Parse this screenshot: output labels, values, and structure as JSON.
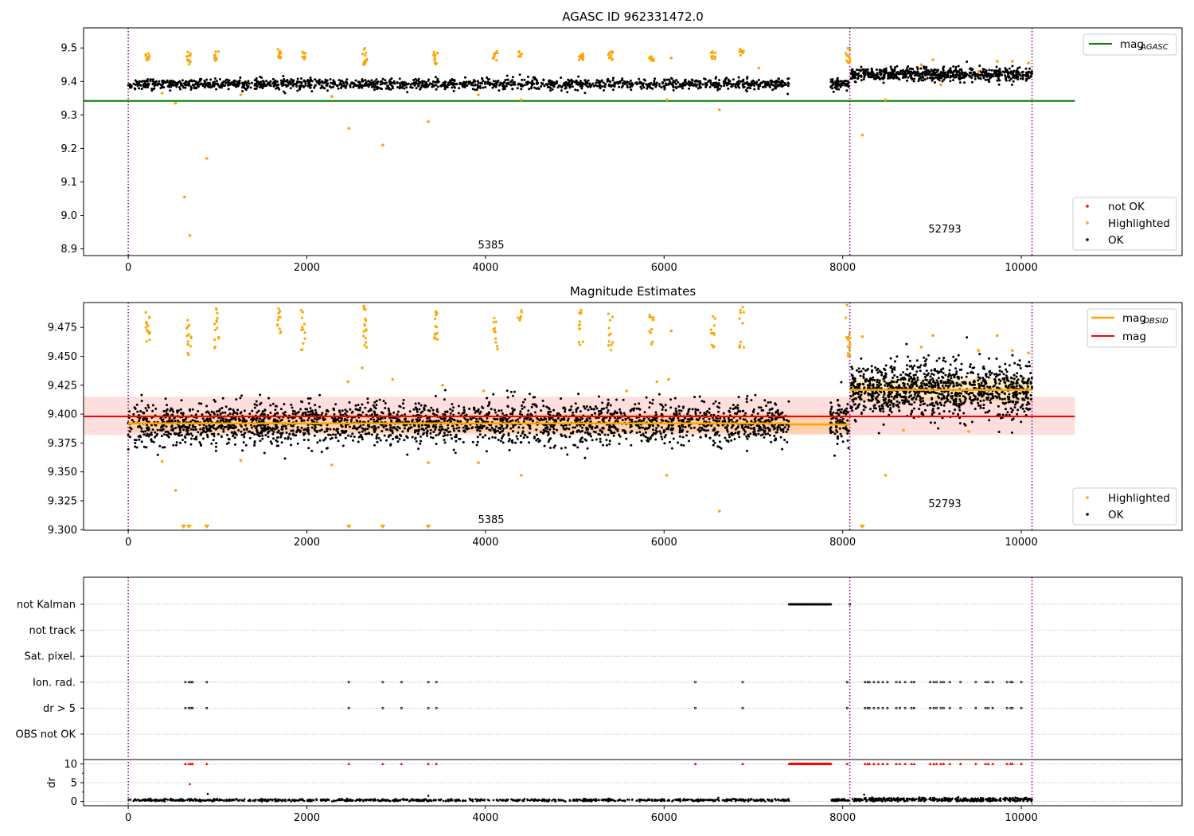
{
  "figure": {
    "width": 1500,
    "height": 1050
  },
  "colors": {
    "ok": "#000000",
    "highlighted": "#ffa500",
    "not_ok": "#ff0000",
    "mag_agasc": "#008000",
    "mag_obsid": "#ffa500",
    "mag": "#ff0000",
    "band_mag": "#ffb6b6",
    "vline": "#800080",
    "grid": "#b0b0b0"
  },
  "chart_data": [
    {
      "id": "top",
      "type": "scatter",
      "title": "AGASC ID 962331472.0",
      "xlim": [
        -500,
        11800
      ],
      "ylim": [
        8.88,
        9.56
      ],
      "x_ticks": [
        0,
        2000,
        4000,
        6000,
        8000,
        10000
      ],
      "y_ticks": [
        8.9,
        9.0,
        9.1,
        9.2,
        9.3,
        9.4,
        9.5
      ],
      "y_tick_labels": [
        "8.9",
        "9.0",
        "9.1",
        "9.2",
        "9.3",
        "9.4",
        "9.5"
      ],
      "vlines": [
        0,
        8080,
        10120
      ],
      "hlines": [
        {
          "name": "mag_AGASC",
          "y": 9.342,
          "x": [
            -500,
            10600
          ],
          "color": "#008000"
        }
      ],
      "obsid_labels": [
        {
          "text": "5385",
          "x": 4040,
          "y": 8.895
        },
        {
          "text": "52793",
          "x": 9000,
          "y": 8.945
        }
      ],
      "legend_top": {
        "position": "upper right",
        "items": [
          {
            "label": "mag",
            "sub": "AGASC",
            "type": "line",
            "color": "#008000"
          }
        ]
      },
      "legend_bottom": {
        "position": "lower right",
        "items": [
          {
            "label": "not OK",
            "type": "dot",
            "color": "#ff0000"
          },
          {
            "label": "Highlighted",
            "type": "dot",
            "color": "#ffa500"
          },
          {
            "label": "OK",
            "type": "dot",
            "color": "#000000"
          }
        ]
      },
      "ok_segments": [
        {
          "x0": 0,
          "x1": 7400,
          "mean": 9.392,
          "sd": 0.008,
          "n": 1500
        },
        {
          "x0": 7860,
          "x1": 8070,
          "mean": 9.392,
          "sd": 0.009,
          "n": 60
        },
        {
          "x0": 8090,
          "x1": 10120,
          "mean": 9.421,
          "sd": 0.01,
          "n": 650
        }
      ],
      "highlight_clusters": [
        {
          "x": 220,
          "y": [
            9.46,
            9.49
          ],
          "n": 12
        },
        {
          "x": 680,
          "y": [
            9.45,
            9.49
          ],
          "n": 12
        },
        {
          "x": 990,
          "y": [
            9.46,
            9.49
          ],
          "n": 12
        },
        {
          "x": 1690,
          "y": [
            9.47,
            9.5
          ],
          "n": 10
        },
        {
          "x": 1960,
          "y": [
            9.46,
            9.49
          ],
          "n": 10
        },
        {
          "x": 2650,
          "y": [
            9.45,
            9.5
          ],
          "n": 14
        },
        {
          "x": 3440,
          "y": [
            9.45,
            9.49
          ],
          "n": 12
        },
        {
          "x": 4110,
          "y": [
            9.46,
            9.49
          ],
          "n": 10
        },
        {
          "x": 4390,
          "y": [
            9.47,
            9.49
          ],
          "n": 6
        },
        {
          "x": 5070,
          "y": [
            9.46,
            9.49
          ],
          "n": 10
        },
        {
          "x": 5400,
          "y": [
            9.46,
            9.49
          ],
          "n": 10
        },
        {
          "x": 5860,
          "y": [
            9.46,
            9.49
          ],
          "n": 10
        },
        {
          "x": 6550,
          "y": [
            9.46,
            9.49
          ],
          "n": 10
        },
        {
          "x": 6870,
          "y": [
            9.47,
            9.5
          ],
          "n": 8
        },
        {
          "x": 8060,
          "y": [
            9.45,
            9.5
          ],
          "n": 14
        }
      ],
      "highlight_points": [
        [
          530,
          9.335
        ],
        [
          630,
          9.055
        ],
        [
          690,
          8.94
        ],
        [
          880,
          9.17
        ],
        [
          2470,
          9.26
        ],
        [
          2850,
          9.21
        ],
        [
          3360,
          9.28
        ],
        [
          6620,
          9.315
        ],
        [
          6080,
          9.47
        ],
        [
          8220,
          9.24
        ],
        [
          8480,
          9.345
        ],
        [
          8880,
          9.45
        ],
        [
          9010,
          9.465
        ],
        [
          9520,
          9.43
        ],
        [
          9730,
          9.46
        ],
        [
          9900,
          9.46
        ],
        [
          10080,
          9.455
        ],
        [
          1260,
          9.36
        ],
        [
          380,
          9.365
        ],
        [
          2280,
          9.355
        ],
        [
          3920,
          9.36
        ],
        [
          4400,
          9.345
        ],
        [
          6030,
          9.345
        ],
        [
          7060,
          9.44
        ],
        [
          9100,
          9.39
        ]
      ]
    },
    {
      "id": "middle",
      "type": "scatter",
      "title": "Magnitude Estimates",
      "xlim": [
        -500,
        11800
      ],
      "ylim": [
        9.2995,
        9.4965
      ],
      "x_ticks": [
        0,
        2000,
        4000,
        6000,
        8000,
        10000
      ],
      "y_ticks": [
        9.3,
        9.325,
        9.35,
        9.375,
        9.4,
        9.425,
        9.45,
        9.475
      ],
      "y_tick_labels": [
        "9.300",
        "9.325",
        "9.350",
        "9.375",
        "9.400",
        "9.425",
        "9.450",
        "9.475"
      ],
      "vlines": [
        0,
        8080,
        10120
      ],
      "mag_line": {
        "y": 9.398,
        "band": [
          9.382,
          9.415
        ],
        "x": [
          -500,
          10600
        ],
        "color": "#ff0000"
      },
      "obsid_lines": [
        {
          "x": [
            0,
            7400
          ],
          "y": 9.392,
          "band": [
            9.384,
            9.4
          ]
        },
        {
          "x": [
            7400,
            8080
          ],
          "y": 9.391,
          "band": [
            9.383,
            9.399
          ]
        },
        {
          "x": [
            8080,
            10120
          ],
          "y": 9.421,
          "band": [
            9.411,
            9.431
          ]
        }
      ],
      "obsid_labels": [
        {
          "text": "5385",
          "x": 4040,
          "y": 9.306
        },
        {
          "text": "52793",
          "x": 9000,
          "y": 9.319
        }
      ],
      "legend_top": {
        "position": "upper right",
        "items": [
          {
            "label": "mag",
            "sub": "OBSID",
            "type": "line",
            "color": "#ffa500"
          },
          {
            "label": "mag",
            "sub": "",
            "type": "line",
            "color": "#ff0000"
          }
        ]
      },
      "legend_bottom": {
        "position": "lower right",
        "items": [
          {
            "label": "Highlighted",
            "type": "dot",
            "color": "#ffa500"
          },
          {
            "label": "OK",
            "type": "dot",
            "color": "#000000"
          }
        ]
      },
      "ok_segments": [
        {
          "x0": 0,
          "x1": 7400,
          "mean": 9.392,
          "sd": 0.009,
          "n": 2600
        },
        {
          "x0": 7860,
          "x1": 8070,
          "mean": 9.392,
          "sd": 0.01,
          "n": 90
        },
        {
          "x0": 8090,
          "x1": 10120,
          "mean": 9.421,
          "sd": 0.012,
          "n": 1100
        }
      ],
      "highlight_clusters": [
        {
          "x": 220,
          "y": [
            9.455,
            9.492
          ],
          "n": 14
        },
        {
          "x": 680,
          "y": [
            9.447,
            9.49
          ],
          "n": 14
        },
        {
          "x": 990,
          "y": [
            9.457,
            9.492
          ],
          "n": 14
        },
        {
          "x": 1690,
          "y": [
            9.467,
            9.495
          ],
          "n": 12
        },
        {
          "x": 1960,
          "y": [
            9.455,
            9.49
          ],
          "n": 12
        },
        {
          "x": 2650,
          "y": [
            9.455,
            9.495
          ],
          "n": 16
        },
        {
          "x": 3440,
          "y": [
            9.455,
            9.49
          ],
          "n": 14
        },
        {
          "x": 4110,
          "y": [
            9.456,
            9.487
          ],
          "n": 12
        },
        {
          "x": 4390,
          "y": [
            9.47,
            9.49
          ],
          "n": 6
        },
        {
          "x": 5070,
          "y": [
            9.458,
            9.492
          ],
          "n": 12
        },
        {
          "x": 5400,
          "y": [
            9.455,
            9.49
          ],
          "n": 12
        },
        {
          "x": 5860,
          "y": [
            9.46,
            9.487
          ],
          "n": 12
        },
        {
          "x": 6550,
          "y": [
            9.455,
            9.485
          ],
          "n": 12
        },
        {
          "x": 6870,
          "y": [
            9.456,
            9.495
          ],
          "n": 10
        },
        {
          "x": 8060,
          "y": [
            9.45,
            9.495
          ],
          "n": 16
        }
      ],
      "highlight_points": [
        [
          530,
          9.334
        ],
        [
          380,
          9.359
        ],
        [
          1260,
          9.36
        ],
        [
          2280,
          9.356
        ],
        [
          2460,
          9.428
        ],
        [
          2620,
          9.44
        ],
        [
          2960,
          9.43
        ],
        [
          3360,
          9.358
        ],
        [
          3920,
          9.358
        ],
        [
          4400,
          9.347
        ],
        [
          6030,
          9.347
        ],
        [
          6620,
          9.316
        ],
        [
          6080,
          9.472
        ],
        [
          5580,
          9.42
        ],
        [
          5920,
          9.428
        ],
        [
          6050,
          9.43
        ],
        [
          8220,
          9.467
        ],
        [
          8480,
          9.347
        ],
        [
          8880,
          9.458
        ],
        [
          9010,
          9.468
        ],
        [
          9520,
          9.455
        ],
        [
          9730,
          9.468
        ],
        [
          9900,
          9.455
        ],
        [
          10080,
          9.453
        ],
        [
          9410,
          9.385
        ],
        [
          8680,
          9.386
        ],
        [
          3520,
          9.425
        ],
        [
          3980,
          9.42
        ]
      ],
      "floor_markers": [
        620,
        680,
        880,
        2470,
        2850,
        3360,
        8220
      ]
    },
    {
      "id": "bottom",
      "type": "scatter",
      "xlim": [
        -500,
        11800
      ],
      "x_ticks": [
        0,
        2000,
        4000,
        6000,
        8000,
        10000
      ],
      "vlines": [
        0,
        8080,
        10120
      ],
      "flag_rows": [
        "not Kalman",
        "not track",
        "Sat. pixel.",
        "Ion. rad.",
        "dr > 5",
        "OBS not OK"
      ],
      "flag_points": {
        "not Kalman": {
          "runs": [
            [
              7400,
              7870
            ]
          ],
          "points": [
            8080
          ]
        },
        "not track": {
          "runs": [],
          "points": []
        },
        "Sat. pixel.": {
          "runs": [],
          "points": []
        },
        "Ion. rad.": {
          "runs": [],
          "points": [
            640,
            680,
            700,
            720,
            880,
            2470,
            2850,
            3060,
            3360,
            3450,
            6350,
            6880,
            8050,
            8250,
            8280,
            8300,
            8350,
            8400,
            8450,
            8500,
            8600,
            8640,
            8700,
            8770,
            8800,
            8980,
            9020,
            9050,
            9100,
            9130,
            9200,
            9320,
            9490,
            9600,
            9630,
            9680,
            9840,
            9880,
            9900,
            10000
          ]
        },
        "dr > 5": {
          "runs": [],
          "points": [
            640,
            680,
            700,
            720,
            880,
            2470,
            2850,
            3060,
            3360,
            3450,
            6350,
            6880,
            8050,
            8250,
            8280,
            8300,
            8350,
            8400,
            8450,
            8500,
            8600,
            8640,
            8700,
            8770,
            8800,
            8980,
            9020,
            9050,
            9100,
            9130,
            9200,
            9320,
            9490,
            9600,
            9630,
            9680,
            9840,
            9880,
            9900,
            10000
          ]
        },
        "OBS not OK": {
          "runs": [],
          "points": []
        }
      },
      "dr": {
        "ylabel": "dr",
        "ylim": [
          -0.5,
          10.5
        ],
        "y_ticks": [
          0,
          5,
          10
        ],
        "y_tick_labels": [
          "0",
          "5",
          "10"
        ],
        "y_minor": [
          2.5,
          7.5
        ],
        "ok_segments": [
          {
            "x0": 0,
            "x1": 7400,
            "mean": 0.35,
            "sd": 0.15,
            "n": 900
          },
          {
            "x0": 7860,
            "x1": 8070,
            "mean": 0.35,
            "sd": 0.15,
            "n": 40
          },
          {
            "x0": 8090,
            "x1": 10120,
            "mean": 0.5,
            "sd": 0.25,
            "n": 400
          }
        ],
        "extra_points": [
          [
            890,
            2.0
          ],
          [
            3360,
            1.5
          ],
          [
            8240,
            1.8
          ]
        ],
        "highlight_points": [
          [
            690,
            4.6
          ]
        ],
        "capped": {
          "runs": [
            [
              7400,
              7870
            ]
          ],
          "points": [
            640,
            680,
            700,
            720,
            880,
            2470,
            2850,
            3060,
            3360,
            3450,
            6350,
            6880,
            8050,
            8250,
            8280,
            8300,
            8350,
            8400,
            8450,
            8500,
            8600,
            8640,
            8700,
            8770,
            8800,
            8980,
            9020,
            9050,
            9100,
            9130,
            9200,
            9320,
            9490,
            9600,
            9630,
            9680,
            9840,
            9880,
            9900,
            10000
          ]
        }
      }
    }
  ]
}
